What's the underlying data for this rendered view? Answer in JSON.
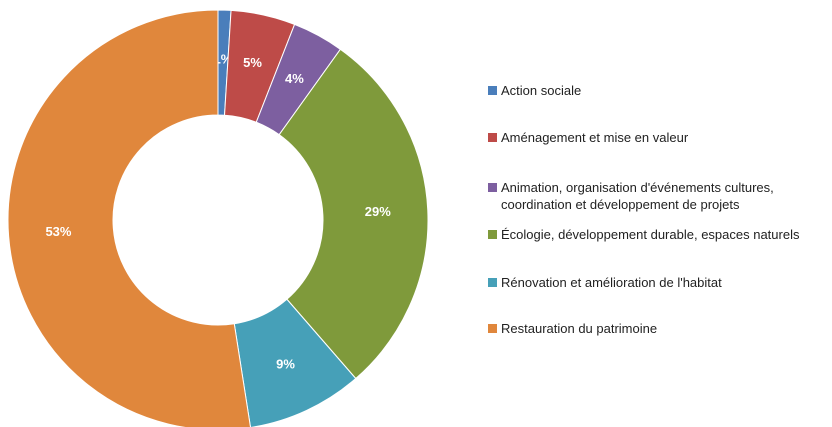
{
  "chart_data": {
    "type": "donut",
    "categories": [
      "Action sociale",
      "Aménagement et mise en valeur",
      "Animation, organisation d'événements cultures, coordination et développement de projets",
      "Écologie, développement durable, espaces naturels",
      "Rénovation et amélioration de l'habitat",
      "Restauration du patrimoine"
    ],
    "values": [
      1,
      5,
      4,
      29,
      9,
      53
    ],
    "value_labels": [
      "1%",
      "5%",
      "4%",
      "29%",
      "9%",
      "53%"
    ],
    "colors": [
      "#4a7ebb",
      "#be4b48",
      "#7d5fa0",
      "#7f9a3b",
      "#46a0b8",
      "#e0873c"
    ],
    "legend": "right"
  }
}
